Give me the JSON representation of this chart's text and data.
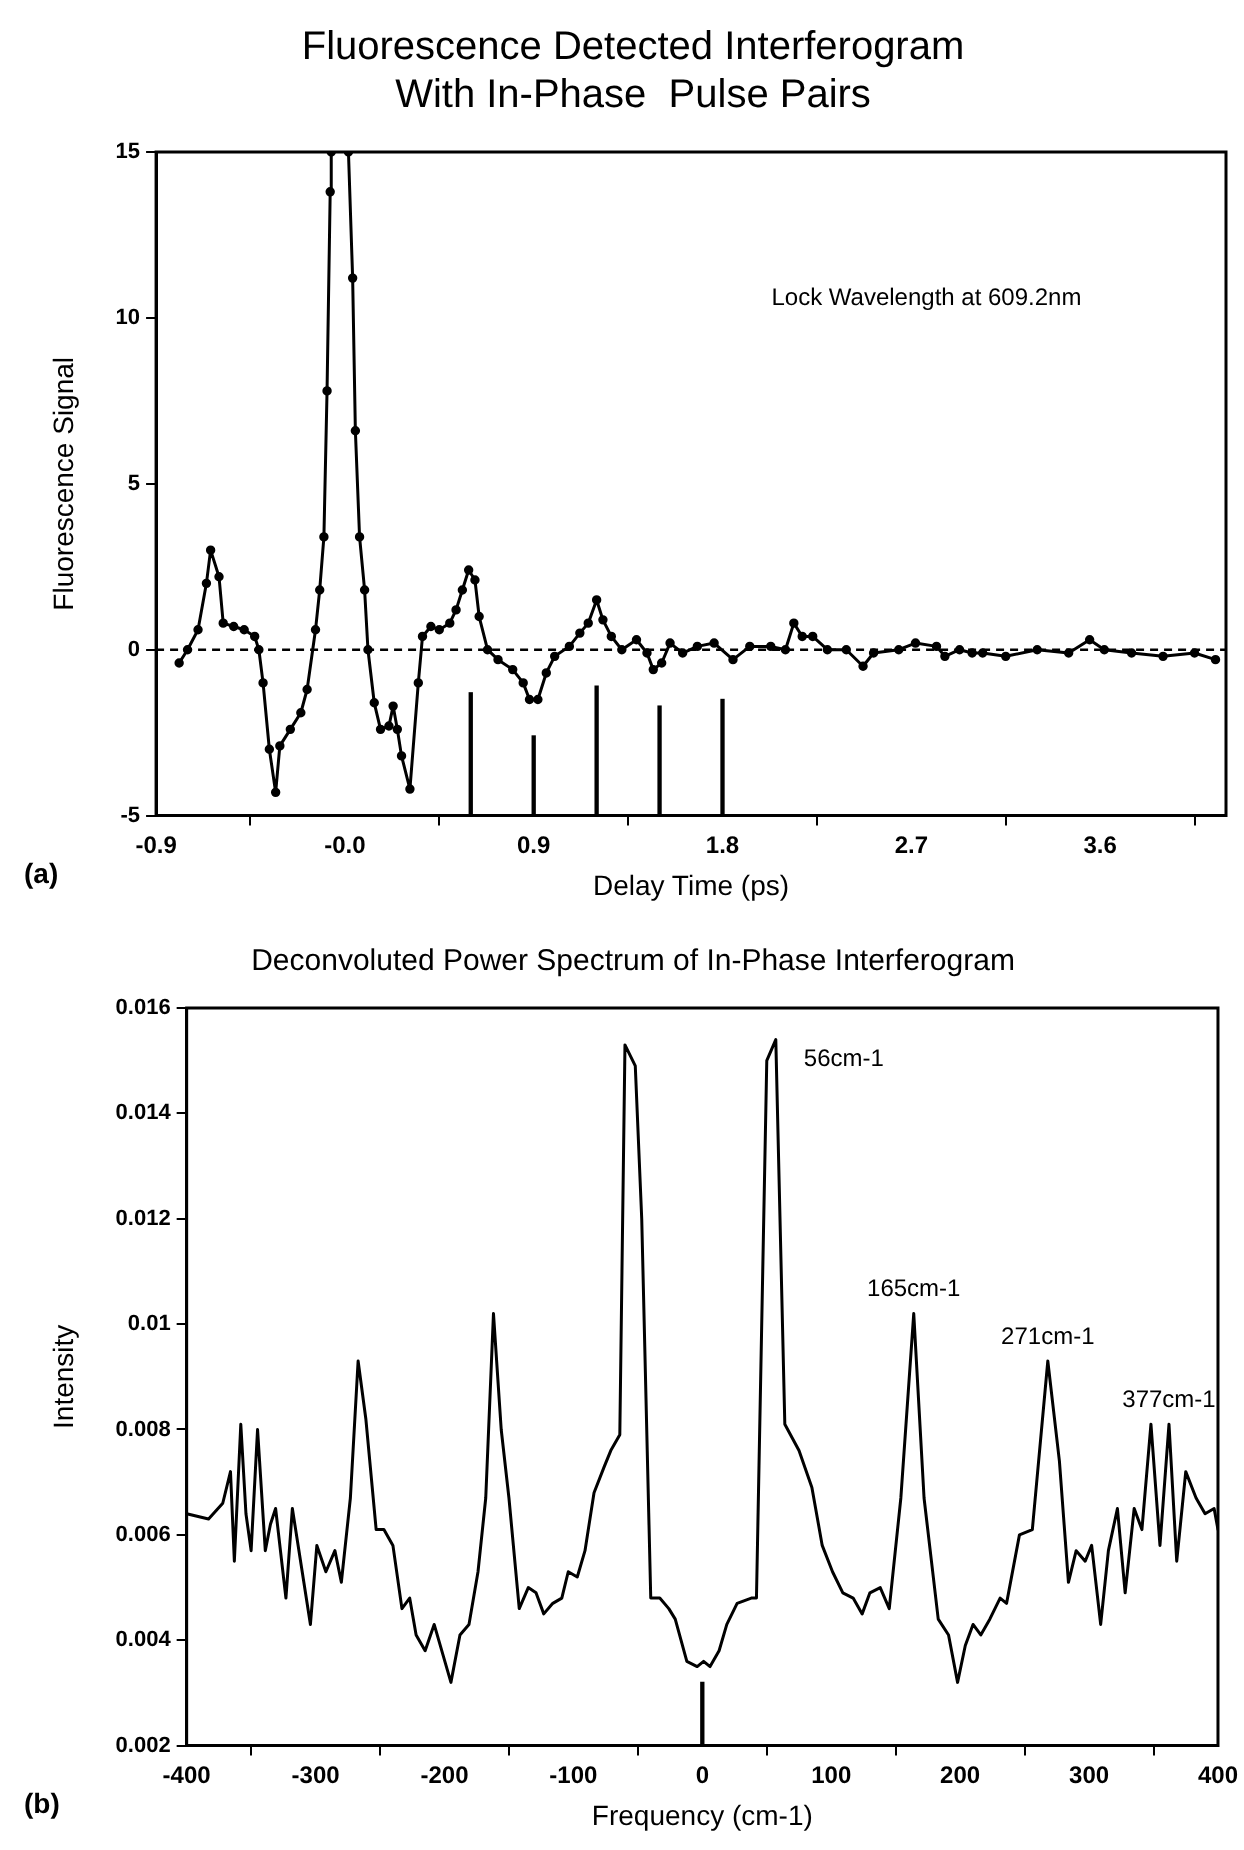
{
  "chart_data": [
    {
      "type": "line",
      "title": "Fluorescence Detected Interferogram\nWith In-Phase  Pulse Pairs",
      "xlabel": "Delay Time (ps)",
      "ylabel": "Fluorescence Signal",
      "annotations": [
        "Lock Wavelength at 609.2nm",
        "(a)"
      ],
      "xlim": [
        -0.9,
        4.2
      ],
      "xticks": [
        -0.9,
        {
          "value": 0,
          "label": "-0.0"
        },
        0.9,
        1.8,
        2.7,
        3.6
      ],
      "ylim": [
        -5,
        15
      ],
      "yticks": [
        -5,
        0,
        5,
        10,
        15
      ],
      "grid": false,
      "legend": false,
      "marker": "circle",
      "ref_lines": [
        {
          "axis": "y",
          "value": 0,
          "line_style": "dashed",
          "color": "#000000"
        }
      ],
      "series": [
        {
          "color": "#000000",
          "x": [
            -0.79,
            -0.75,
            -0.7,
            -0.66,
            -0.64,
            -0.6,
            -0.58,
            -0.53,
            -0.48,
            -0.43,
            -0.41,
            -0.39,
            -0.36,
            -0.33,
            -0.31,
            -0.26,
            -0.21,
            -0.18,
            -0.14,
            -0.12,
            -0.1,
            -0.085,
            -0.07,
            -0.065,
            -0.02,
            0.017,
            0.037,
            0.05,
            0.07,
            0.094,
            0.11,
            0.14,
            0.17,
            0.21,
            0.23,
            0.25,
            0.27,
            0.31,
            0.35,
            0.37,
            0.41,
            0.45,
            0.5,
            0.53,
            0.56,
            0.59,
            0.62,
            0.64,
            0.68,
            0.73,
            0.8,
            0.85,
            0.88,
            0.92,
            0.96,
            1.0,
            1.07,
            1.12,
            1.16,
            1.2,
            1.23,
            1.27,
            1.32,
            1.39,
            1.44,
            1.47,
            1.51,
            1.55,
            1.61,
            1.68,
            1.76,
            1.85,
            1.93,
            2.03,
            2.1,
            2.14,
            2.18,
            2.23,
            2.3,
            2.39,
            2.47,
            2.52,
            2.64,
            2.72,
            2.82,
            2.86,
            2.93,
            2.99,
            3.04,
            3.15,
            3.3,
            3.45,
            3.55,
            3.62,
            3.75,
            3.9,
            4.05,
            4.15
          ],
          "values": [
            -0.4,
            0.0,
            0.6,
            2.0,
            3.0,
            2.2,
            0.8,
            0.7,
            0.6,
            0.4,
            0.0,
            -1.0,
            -3.0,
            -4.3,
            -2.9,
            -2.4,
            -1.9,
            -1.2,
            0.6,
            1.8,
            3.4,
            7.8,
            13.8,
            15,
            null,
            15,
            11.2,
            6.6,
            3.4,
            1.8,
            0.0,
            -1.6,
            -2.4,
            -2.3,
            -1.7,
            -2.4,
            -3.2,
            -4.2,
            -1.0,
            0.4,
            0.7,
            0.6,
            0.8,
            1.2,
            1.8,
            2.4,
            2.1,
            1.0,
            0.0,
            -0.3,
            -0.6,
            -1.0,
            -1.5,
            -1.5,
            -0.7,
            -0.2,
            0.1,
            0.5,
            0.8,
            1.5,
            0.9,
            0.4,
            0.0,
            0.3,
            -0.1,
            -0.6,
            -0.4,
            0.2,
            -0.1,
            0.1,
            0.2,
            -0.3,
            0.1,
            0.1,
            0.0,
            0.8,
            0.4,
            0.4,
            0.0,
            0.0,
            -0.5,
            -0.1,
            0.0,
            0.2,
            0.1,
            -0.2,
            0.0,
            -0.1,
            -0.1,
            -0.2,
            0.0,
            -0.1,
            0.3,
            0.0,
            -0.1,
            -0.2,
            -0.1,
            -0.3
          ]
        },
        {
          "type": "bar",
          "color": "#000000",
          "x": [
            0.6,
            0.9,
            1.2,
            1.5,
            1.8
          ],
          "base": [
            -5,
            -5,
            -5,
            -5,
            -5
          ],
          "values": [
            3.7,
            2.4,
            3.9,
            3.3,
            3.5
          ]
        }
      ]
    },
    {
      "type": "line",
      "title": "Deconvoluted Power Spectrum of In-Phase Interferogram",
      "xlabel": "Frequency (cm-1)",
      "ylabel": "Intensity",
      "annotations": [
        "(b)",
        {
          "text": "56cm-1",
          "x": 57,
          "y": 0.0154
        },
        {
          "text": "165cm-1",
          "x": 164,
          "y": 0.0102
        },
        {
          "text": "271cm-1",
          "x": 268,
          "y": 0.0093
        },
        {
          "text": "377cm-1",
          "x": 362,
          "y": 0.0081
        }
      ],
      "xlim": [
        -400,
        400
      ],
      "xticks": [
        -400,
        -300,
        -200,
        -100,
        0,
        100,
        200,
        300,
        400
      ],
      "ylim": [
        0.002,
        0.016
      ],
      "yticks": [
        0.002,
        0.004,
        0.006,
        0.008,
        0.01,
        0.012,
        0.014,
        0.016
      ],
      "grid": false,
      "legend": false,
      "series": [
        {
          "color": "#000000",
          "x": [
            -400,
            -383,
            -372,
            -366,
            -363,
            -358,
            -354,
            -350,
            -345,
            -339,
            -335,
            -331,
            -323,
            -318,
            -311,
            -304,
            -299,
            -292,
            -285,
            -280,
            -273,
            -267,
            -261,
            -253,
            -247,
            -240,
            -233,
            -227,
            -222,
            -215,
            -208,
            -195,
            -188,
            -181,
            -174,
            -168,
            -162,
            -156,
            -150,
            -142,
            -135,
            -129,
            -123,
            -116,
            -109,
            -104,
            -97,
            -91,
            -84,
            -76,
            -71,
            -64,
            -60,
            -52,
            -47,
            -40,
            -33,
            -26,
            -21,
            -12,
            -4,
            1,
            6,
            13,
            19,
            27,
            38,
            42,
            50,
            57,
            64,
            75,
            85,
            93,
            101,
            109,
            117,
            124,
            130,
            138,
            145,
            154,
            164,
            172,
            183,
            191,
            198,
            204,
            210,
            216,
            223,
            231,
            236,
            246,
            256,
            268,
            277,
            284,
            290,
            297,
            302,
            309,
            315,
            322,
            328,
            335,
            341,
            348,
            355,
            362,
            368,
            375,
            383,
            390,
            397,
            400
          ],
          "values": [
            0.0064,
            0.0063,
            0.0066,
            0.0072,
            0.0055,
            0.0081,
            0.0064,
            0.0057,
            0.008,
            0.0057,
            0.0062,
            0.0065,
            0.0048,
            0.0065,
            0.0054,
            0.0043,
            0.0058,
            0.0053,
            0.0057,
            0.0051,
            0.0067,
            0.0093,
            0.0082,
            0.0061,
            0.0061,
            0.0058,
            0.0046,
            0.0048,
            0.0041,
            0.0038,
            0.0043,
            0.0032,
            0.0041,
            0.0043,
            0.0053,
            0.0067,
            0.0102,
            0.008,
            0.0067,
            0.0046,
            0.005,
            0.0049,
            0.0045,
            0.0047,
            0.0048,
            0.0053,
            0.0052,
            0.0057,
            0.0068,
            0.0073,
            0.0076,
            0.0079,
            0.0153,
            0.0149,
            0.012,
            0.0048,
            0.0048,
            0.0046,
            0.0044,
            0.0036,
            0.0035,
            0.0036,
            0.0035,
            0.0038,
            0.0043,
            0.0047,
            0.0048,
            0.0048,
            0.015,
            0.0154,
            0.0081,
            0.0076,
            0.0069,
            0.0058,
            0.0053,
            0.0049,
            0.0048,
            0.0045,
            0.0049,
            0.005,
            0.0046,
            0.0067,
            0.0102,
            0.0067,
            0.0044,
            0.0041,
            0.0032,
            0.0039,
            0.0043,
            0.0041,
            0.0044,
            0.0048,
            0.0047,
            0.006,
            0.0061,
            0.0093,
            0.0074,
            0.0051,
            0.0057,
            0.0055,
            0.0058,
            0.0043,
            0.0057,
            0.0065,
            0.0049,
            0.0065,
            0.0061,
            0.0081,
            0.0058,
            0.0081,
            0.0055,
            0.0072,
            0.0067,
            0.0064,
            0.0065,
            0.0061
          ]
        },
        {
          "type": "bar",
          "color": "#000000",
          "x": [
            0
          ],
          "base": [
            0.002
          ],
          "values": [
            0.0012
          ]
        }
      ]
    }
  ]
}
